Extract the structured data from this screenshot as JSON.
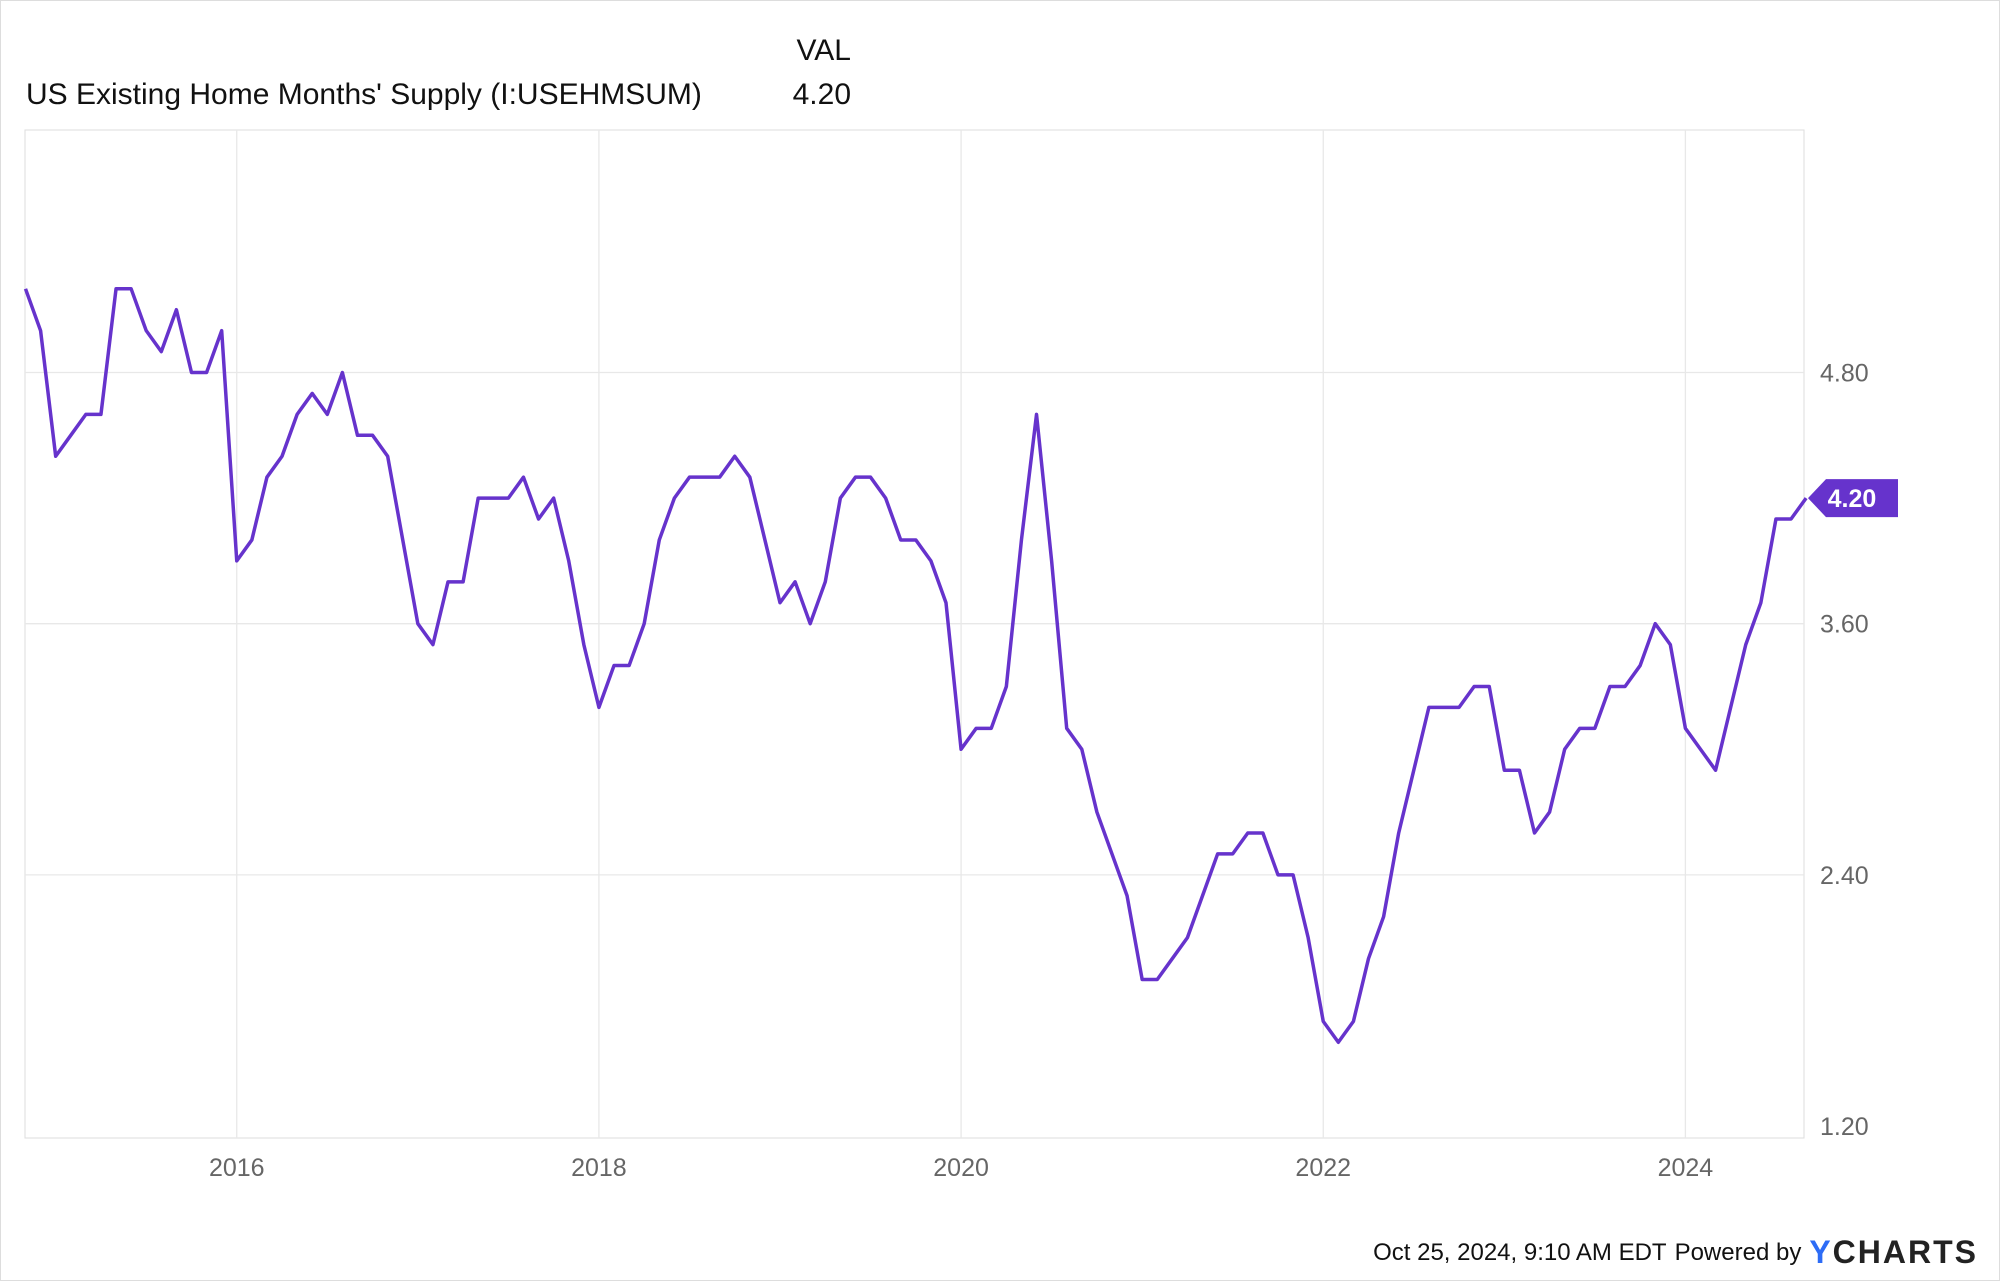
{
  "header": {
    "column_label": "VAL",
    "series_name": "US Existing Home Months' Supply (I:USEHMSUM)",
    "series_value": "4.20"
  },
  "footer": {
    "timestamp": "Oct 25, 2024, 9:10 AM EDT",
    "powered_by": "Powered by",
    "logo_y": "Y",
    "logo_rest": "CHARTS"
  },
  "colors": {
    "line": "#6633cc",
    "grid": "#e8e8e8",
    "axis_text": "#666666"
  },
  "chart_data": {
    "type": "line",
    "title": "US Existing Home Months' Supply (I:USEHMSUM)",
    "xlabel": "",
    "ylabel": "",
    "x_start": "2014-11",
    "frequency": "monthly",
    "ylim": [
      1.2,
      5.45
    ],
    "yticks": [
      1.2,
      2.4,
      3.6,
      4.8
    ],
    "ytick_labels": [
      "1.20",
      "2.40",
      "3.60",
      "4.80"
    ],
    "xticks": [
      2016,
      2018,
      2020,
      2022,
      2024
    ],
    "xtick_labels": [
      "2016",
      "2018",
      "2020",
      "2022",
      "2024"
    ],
    "grid": true,
    "last_value_label": "4.20",
    "series": [
      {
        "name": "US Existing Home Months' Supply",
        "values": [
          5.2,
          5.0,
          4.4,
          4.5,
          4.6,
          4.6,
          5.2,
          5.2,
          5.0,
          4.9,
          5.1,
          4.8,
          4.8,
          5.0,
          3.9,
          4.0,
          4.3,
          4.4,
          4.6,
          4.7,
          4.6,
          4.8,
          4.5,
          4.5,
          4.4,
          4.0,
          3.6,
          3.5,
          3.8,
          3.8,
          4.2,
          4.2,
          4.2,
          4.3,
          4.1,
          4.2,
          3.9,
          3.5,
          3.2,
          3.4,
          3.4,
          3.6,
          4.0,
          4.2,
          4.3,
          4.3,
          4.3,
          4.4,
          4.3,
          4.0,
          3.7,
          3.8,
          3.6,
          3.8,
          4.2,
          4.3,
          4.3,
          4.2,
          4.0,
          4.0,
          3.9,
          3.7,
          3.0,
          3.1,
          3.1,
          3.3,
          4.0,
          4.6,
          3.9,
          3.1,
          3.0,
          2.7,
          2.5,
          2.3,
          1.9,
          1.9,
          2.0,
          2.1,
          2.3,
          2.5,
          2.5,
          2.6,
          2.6,
          2.4,
          2.4,
          2.1,
          1.7,
          1.6,
          1.7,
          2.0,
          2.2,
          2.6,
          2.9,
          3.2,
          3.2,
          3.2,
          3.3,
          3.3,
          2.9,
          2.9,
          2.6,
          2.7,
          3.0,
          3.1,
          3.1,
          3.3,
          3.3,
          3.4,
          3.6,
          3.5,
          3.1,
          3.0,
          2.9,
          3.2,
          3.5,
          3.7,
          4.1,
          4.1,
          4.2
        ]
      }
    ]
  }
}
